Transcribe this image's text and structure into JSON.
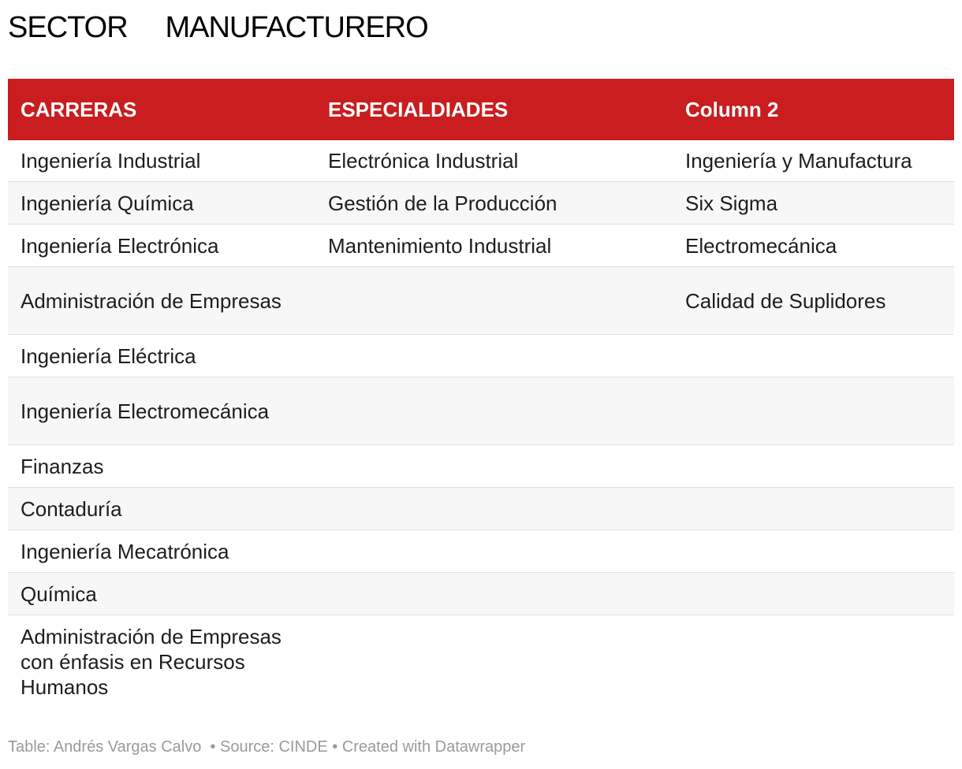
{
  "title": "SECTOR     MANUFACTURERO",
  "table": {
    "headers": [
      "CARRERAS",
      "ESPECIALDIADES",
      "Column 2"
    ],
    "rows": [
      [
        "Ingeniería Industrial",
        "Electrónica Industrial",
        "Ingeniería y Manufactura"
      ],
      [
        "Ingeniería Química",
        "Gestión de la Producción",
        "Six Sigma"
      ],
      [
        "Ingeniería Electrónica",
        "Mantenimiento Industrial",
        "Electromecánica"
      ],
      [
        "Administración de Empresas",
        "",
        "Calidad de Suplidores"
      ],
      [
        "Ingeniería Eléctrica",
        "",
        ""
      ],
      [
        "Ingeniería Electromecánica",
        "",
        ""
      ],
      [
        "Finanzas",
        "",
        ""
      ],
      [
        "Contaduría",
        "",
        ""
      ],
      [
        "Ingeniería Mecatrónica",
        "",
        ""
      ],
      [
        "Química",
        "",
        ""
      ],
      [
        "Administración de Empresas con énfasis en Recursos Humanos",
        "",
        ""
      ]
    ]
  },
  "footer": "Table: Andrés Vargas Calvo  • Source: CINDE • Created with Datawrapper",
  "colors": {
    "header_bg": "#c91d1f",
    "header_text": "#ffffff",
    "stripe": "#f7f7f7",
    "footer_text": "#9a9a9a"
  }
}
